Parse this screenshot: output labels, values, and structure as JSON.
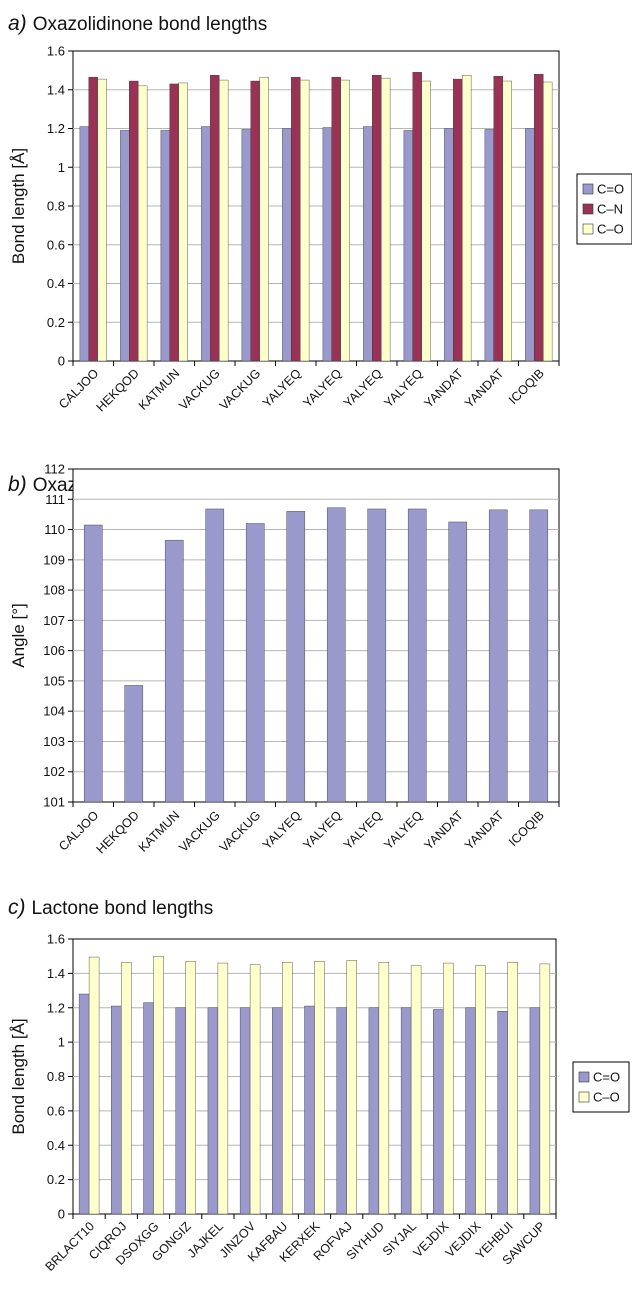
{
  "chart_data": [
    {
      "type": "bar",
      "letter": "a)",
      "title": "Oxazolidinone bond lengths",
      "xlabel": "",
      "ylabel": "Bond length [Å]",
      "ylim": [
        0,
        1.6
      ],
      "yticks": [
        "0",
        "0.2",
        "0.4",
        "0.6",
        "0.8",
        "1",
        "1.2",
        "1.4",
        "1.6"
      ],
      "grid": true,
      "legend_position": "right",
      "categories": [
        "CALJOO",
        "HEKQOD",
        "KATMUN",
        "VACKUG",
        "VACKUG",
        "YALYEQ",
        "YALYEQ",
        "YALYEQ",
        "YALYEQ",
        "YANDAT",
        "YANDAT",
        "ICOQIB"
      ],
      "series": [
        {
          "name": "C=O",
          "color": "#9999cc",
          "values": [
            1.21,
            1.19,
            1.19,
            1.21,
            1.195,
            1.2,
            1.205,
            1.21,
            1.19,
            1.2,
            1.195,
            1.2
          ]
        },
        {
          "name": "C–N",
          "color": "#993355",
          "values": [
            1.465,
            1.445,
            1.43,
            1.475,
            1.445,
            1.465,
            1.465,
            1.475,
            1.49,
            1.455,
            1.47,
            1.48
          ]
        },
        {
          "name": "C–O",
          "color": "#ffffcc",
          "values": [
            1.455,
            1.42,
            1.435,
            1.45,
            1.465,
            1.45,
            1.45,
            1.46,
            1.445,
            1.475,
            1.445,
            1.44
          ]
        }
      ]
    },
    {
      "type": "bar",
      "letter": "b)",
      "title": "Oxazolidinone Lp–N–C–O dihedral angles",
      "xlabel": "",
      "ylabel": "Angle [°]",
      "ylim": [
        101,
        112
      ],
      "yticks": [
        "101",
        "102",
        "103",
        "104",
        "105",
        "106",
        "107",
        "108",
        "109",
        "110",
        "111",
        "112"
      ],
      "grid": true,
      "legend_position": "none",
      "categories": [
        "CALJOO",
        "HEKQOD",
        "KATMUN",
        "VACKUG",
        "VACKUG",
        "YALYEQ",
        "YALYEQ",
        "YALYEQ",
        "YALYEQ",
        "YANDAT",
        "YANDAT",
        "ICOQIB"
      ],
      "series": [
        {
          "name": "",
          "color": "#9999cc",
          "values": [
            110.15,
            104.85,
            109.65,
            110.68,
            110.2,
            110.6,
            110.72,
            110.68,
            110.68,
            110.25,
            110.65,
            110.65
          ]
        }
      ]
    },
    {
      "type": "bar",
      "letter": "c)",
      "title": "Lactone bond lengths",
      "xlabel": "",
      "ylabel": "Bond length [Å]",
      "ylim": [
        0,
        1.6
      ],
      "yticks": [
        "0",
        "0.2",
        "0.4",
        "0.6",
        "0.8",
        "1",
        "1.2",
        "1.4",
        "1.6"
      ],
      "grid": true,
      "legend_position": "right",
      "categories": [
        "BRLACT10",
        "CIQROJ",
        "DSOXGG",
        "GONGIZ",
        "JAJKEL",
        "JINZOV",
        "KAFBAU",
        "KERXEK",
        "ROFVAJ",
        "SIYHUD",
        "SIYJAL",
        "VEJDIX",
        "VEJDIX",
        "YEHBUI",
        "SAWCUP"
      ],
      "series": [
        {
          "name": "C=O",
          "color": "#9999cc",
          "values": [
            1.28,
            1.21,
            1.23,
            1.2,
            1.2,
            1.2,
            1.2,
            1.21,
            1.2,
            1.2,
            1.2,
            1.19,
            1.2,
            1.18,
            1.2
          ]
        },
        {
          "name": "C–O",
          "color": "#ffffcc",
          "values": [
            1.495,
            1.465,
            1.5,
            1.47,
            1.46,
            1.45,
            1.465,
            1.47,
            1.475,
            1.465,
            1.445,
            1.46,
            1.445,
            1.465,
            1.455
          ]
        }
      ]
    }
  ]
}
